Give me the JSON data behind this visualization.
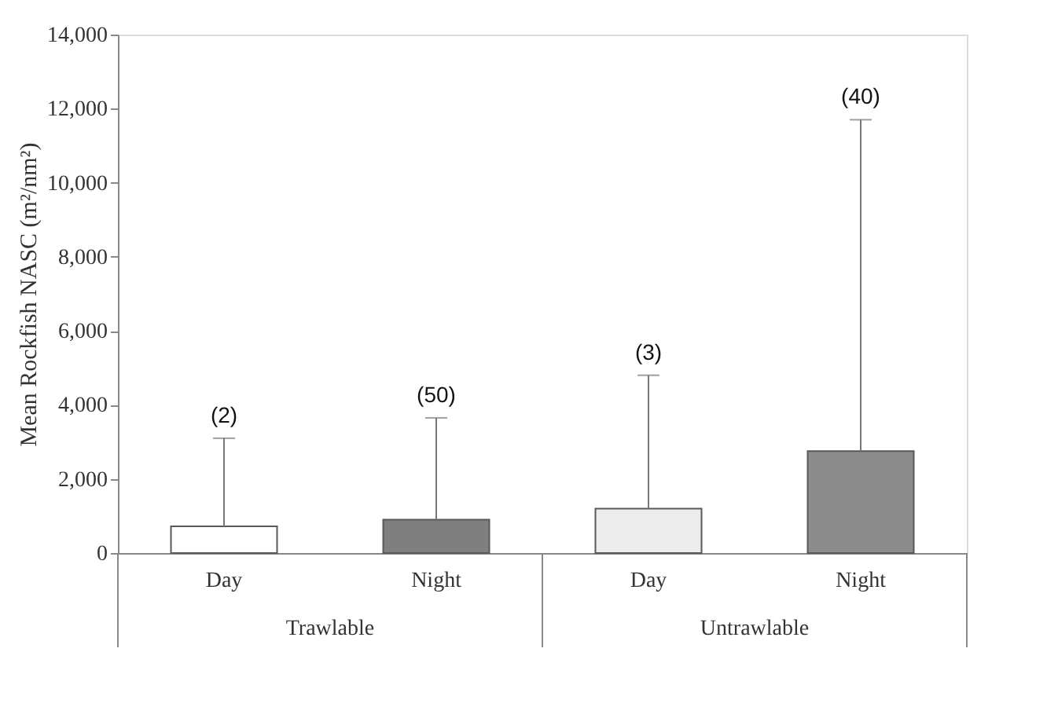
{
  "chart_data": {
    "type": "bar",
    "ylabel": "Mean Rockfish NASC (m²/nm²)",
    "categories": [
      "Day",
      "Night",
      "Day",
      "Night"
    ],
    "values": [
      720,
      900,
      1200,
      2750
    ],
    "colors": [
      "#ffffff",
      "#7f7f7f",
      "#ececec",
      "#8c8c8c"
    ],
    "errors": [
      [
        720,
        3100
      ],
      [
        900,
        3650
      ],
      [
        1200,
        4800
      ],
      [
        2750,
        11700
      ]
    ],
    "annotations": [
      "Trawlable",
      "Untrawlable",
      "(2)",
      "(50)",
      "(3)",
      "(40)"
    ],
    "ylim": [
      0,
      14000
    ],
    "yticks": [
      0,
      {
        "value": 2000,
        "label": "2,000"
      },
      {
        "value": 4000,
        "label": "4,000"
      },
      {
        "value": 6000,
        "label": "6,000"
      },
      {
        "value": 8000,
        "label": "8,000"
      },
      {
        "value": 10000,
        "label": "10,000"
      },
      {
        "value": 12000,
        "label": "12,000"
      },
      {
        "value": 14000,
        "label": "14,000"
      }
    ],
    "grid": false
  }
}
